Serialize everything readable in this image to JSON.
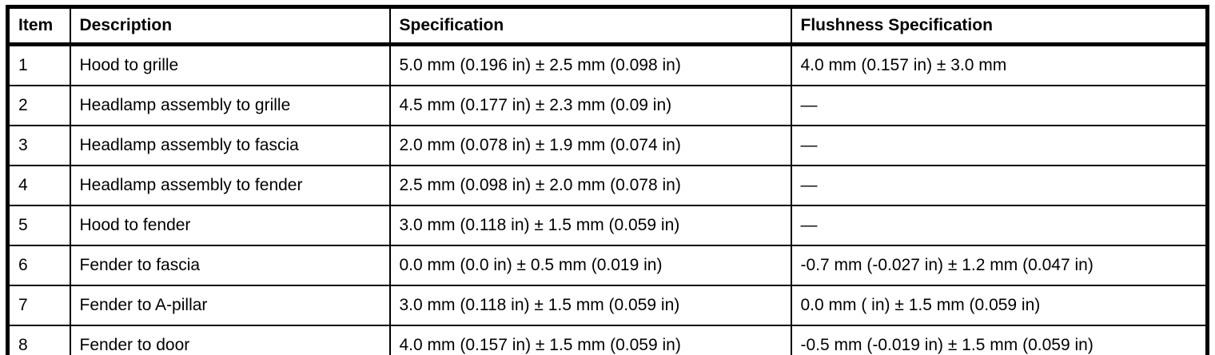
{
  "table": {
    "columns": [
      {
        "key": "item",
        "label": "Item"
      },
      {
        "key": "description",
        "label": "Description"
      },
      {
        "key": "specification",
        "label": "Specification"
      },
      {
        "key": "flushness",
        "label": "Flushness Specification"
      }
    ],
    "rows": [
      {
        "item": "1",
        "description": "Hood to grille",
        "specification": "5.0 mm (0.196 in) ± 2.5 mm (0.098 in)",
        "flushness": "4.0 mm (0.157 in) ± 3.0 mm"
      },
      {
        "item": "2",
        "description": "Headlamp assembly to grille",
        "specification": "4.5 mm (0.177 in) ± 2.3 mm (0.09 in)",
        "flushness": "—"
      },
      {
        "item": "3",
        "description": "Headlamp assembly to fascia",
        "specification": "2.0 mm (0.078 in) ± 1.9 mm (0.074 in)",
        "flushness": "—"
      },
      {
        "item": "4",
        "description": "Headlamp assembly to fender",
        "specification": "2.5 mm (0.098 in) ± 2.0 mm (0.078 in)",
        "flushness": "—"
      },
      {
        "item": "5",
        "description": "Hood to fender",
        "specification": "3.0 mm (0.118 in) ± 1.5 mm (0.059 in)",
        "flushness": "—"
      },
      {
        "item": "6",
        "description": "Fender to fascia",
        "specification": "0.0 mm (0.0 in) ± 0.5 mm (0.019 in)",
        "flushness": "-0.7 mm (-0.027 in) ± 1.2 mm (0.047 in)"
      },
      {
        "item": "7",
        "description": "Fender to A-pillar",
        "specification": "3.0 mm (0.118 in) ± 1.5 mm (0.059 in)",
        "flushness": "0.0 mm ( in) ± 1.5 mm (0.059 in)"
      },
      {
        "item": "8",
        "description": "Fender to door",
        "specification": "4.0 mm (0.157 in) ± 1.5 mm (0.059 in)",
        "flushness": "-0.5 mm (-0.019 in) ± 1.5 mm (0.059 in)"
      }
    ],
    "colors": {
      "border": "#000000",
      "text": "#000000",
      "background": "#ffffff"
    }
  }
}
